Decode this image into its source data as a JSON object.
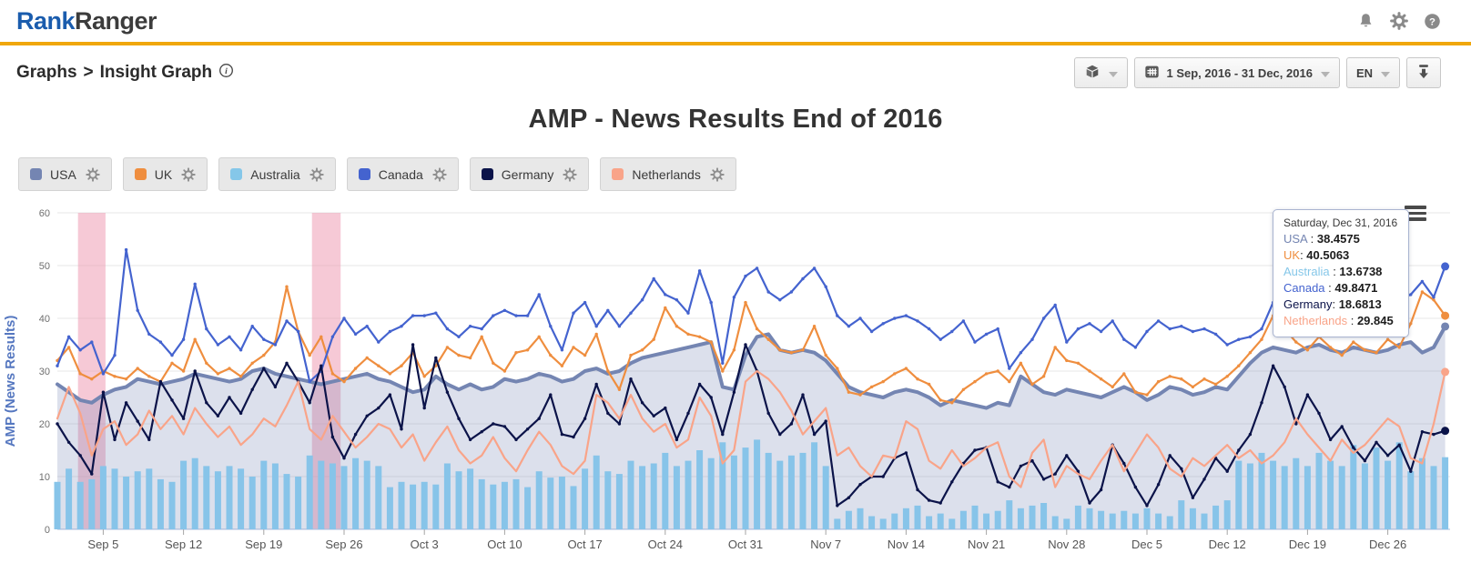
{
  "header": {
    "logo_primary": "Rank",
    "logo_secondary": "Ranger",
    "icons": [
      "notifications-bell",
      "settings-gear",
      "help-question"
    ]
  },
  "breadcrumb": {
    "section": "Graphs",
    "separator": ">",
    "page": "Insight Graph"
  },
  "toolbar": {
    "view_mode_icon": "package-cube",
    "date_range": "1 Sep, 2016 - 31 Dec, 2016",
    "language": "EN",
    "download_icon": "download-arrow"
  },
  "title": "AMP - News Results End of 2016",
  "legend": [
    {
      "label": "USA",
      "color": "#7485B2"
    },
    {
      "label": "UK",
      "color": "#EF8E3F"
    },
    {
      "label": "Australia",
      "color": "#85C7E9"
    },
    {
      "label": "Canada",
      "color": "#4463CF"
    },
    {
      "label": "Germany",
      "color": "#0B1349"
    },
    {
      "label": "Netherlands",
      "color": "#F9A489"
    }
  ],
  "tooltip": {
    "date": "Saturday, Dec 31, 2016",
    "rows": [
      {
        "label": "USA",
        "sep": " : ",
        "value": "38.4575",
        "color": "#7485B2"
      },
      {
        "label": "UK",
        "sep": ": ",
        "value": "40.5063",
        "color": "#EF8E3F"
      },
      {
        "label": "Australia",
        "sep": " : ",
        "value": "13.6738",
        "color": "#85C7E9"
      },
      {
        "label": "Canada",
        "sep": " : ",
        "value": "49.8471",
        "color": "#4463CF"
      },
      {
        "label": "Germany",
        "sep": ": ",
        "value": "18.6813",
        "color": "#0B1349"
      },
      {
        "label": "Netherlands",
        "sep": " : ",
        "value": "29.845",
        "color": "#F9A489"
      }
    ]
  },
  "chart_data": {
    "type": "line",
    "title": "AMP - News Results End of 2016",
    "xlabel": "",
    "ylabel": "AMP (News Results)",
    "ylim": [
      0,
      60
    ],
    "grid": true,
    "legend_position": "top-left",
    "x_start_date": "Sep 1, 2016",
    "x_end_date": "Dec 31, 2016",
    "x_tick_labels": [
      "Sep 5",
      "Sep 12",
      "Sep 19",
      "Sep 26",
      "Oct 3",
      "Oct 10",
      "Oct 17",
      "Oct 24",
      "Oct 31",
      "Nov 7",
      "Nov 14",
      "Nov 21",
      "Nov 28",
      "Dec 5",
      "Dec 12",
      "Dec 19",
      "Dec 26"
    ],
    "x_tick_days": [
      4,
      11,
      18,
      25,
      32,
      39,
      46,
      53,
      60,
      67,
      74,
      81,
      88,
      95,
      102,
      109,
      116
    ],
    "plot_bands": [
      {
        "from_day": 1.8,
        "to_day": 4.2,
        "color": "#EE9DB4"
      },
      {
        "from_day": 22.2,
        "to_day": 24.7,
        "color": "#EE9DB4"
      }
    ],
    "series": [
      {
        "name": "USA",
        "type": "area",
        "color": "#7485B2",
        "fill": "rgba(116,133,178,0.25)",
        "width": 4,
        "values": [
          27.5,
          26,
          24.5,
          24,
          25.5,
          26.5,
          27,
          28.5,
          28,
          27.5,
          28,
          28.5,
          29.5,
          29,
          28.5,
          28,
          28.5,
          30,
          30.5,
          29.5,
          29,
          28.5,
          28,
          27.5,
          28,
          28.5,
          29,
          29.5,
          28.5,
          28,
          27,
          26,
          26.5,
          29,
          27.5,
          26.5,
          27.5,
          26.5,
          27,
          28.5,
          28,
          28.5,
          29.5,
          29,
          28,
          28.5,
          30,
          30.5,
          29.5,
          30,
          31.5,
          32.5,
          33,
          33.5,
          34,
          34.5,
          35,
          35.5,
          27,
          26.5,
          33,
          36.5,
          37,
          34,
          33.5,
          34,
          33.5,
          32,
          29.5,
          27,
          26,
          25.5,
          25,
          26,
          26.5,
          26,
          25,
          23.5,
          24.5,
          24,
          23.5,
          23,
          24,
          23.5,
          29,
          27.5,
          26,
          25.5,
          26.5,
          26,
          25.5,
          25,
          26,
          27,
          26,
          24.5,
          25.5,
          27,
          26.5,
          25.5,
          26,
          27,
          26.5,
          29,
          31.5,
          33.5,
          34.5,
          34,
          33.5,
          34.5,
          35,
          34,
          33.5,
          34.5,
          34,
          33.5,
          34,
          35,
          35.5,
          33.5,
          34.5,
          38.4575
        ]
      },
      {
        "name": "UK",
        "type": "line",
        "color": "#EF8E3F",
        "width": 2.2,
        "markers": true,
        "values": [
          32,
          34.5,
          29.5,
          28.5,
          30,
          29,
          28.5,
          30.5,
          29,
          28,
          31.5,
          30,
          36,
          31.5,
          29.5,
          30.5,
          29,
          31.5,
          33,
          35.5,
          46,
          37.5,
          33,
          36.5,
          29.5,
          28,
          30.5,
          32.5,
          31,
          29.5,
          31,
          33.5,
          29,
          31,
          34.5,
          33,
          32.5,
          36.5,
          31.5,
          30,
          33.5,
          34,
          36.5,
          33,
          31,
          34.5,
          33,
          37,
          30,
          26.5,
          33,
          34,
          36,
          42,
          38.5,
          37,
          36.5,
          35.5,
          30,
          34,
          43,
          38,
          36,
          34,
          33.5,
          34,
          38.5,
          33,
          30.5,
          26,
          25.5,
          27,
          28,
          29.5,
          30.5,
          28.5,
          27.5,
          24.5,
          24,
          26.5,
          28,
          29.5,
          30,
          28,
          31.5,
          27.5,
          29,
          34.5,
          32,
          31.5,
          30,
          28.5,
          27,
          29.5,
          26,
          25.5,
          28,
          29,
          28.5,
          27,
          28.5,
          27.5,
          29,
          31,
          33.5,
          36,
          40.5,
          38,
          35.5,
          34,
          36.5,
          34.5,
          33,
          35.5,
          34,
          33.5,
          36,
          34.5,
          39,
          45,
          43.5,
          40.5063
        ]
      },
      {
        "name": "Australia",
        "type": "column",
        "color": "#87C4E9",
        "values": [
          9,
          11.5,
          9,
          9.5,
          12,
          11.5,
          10,
          11,
          11.5,
          9.5,
          9,
          13,
          13.5,
          12,
          11,
          12,
          11.5,
          10,
          13,
          12.5,
          10.5,
          10,
          14,
          13,
          12.5,
          12,
          13.5,
          13,
          12,
          8,
          9,
          8.5,
          9,
          8.5,
          12.5,
          11,
          11.5,
          9.5,
          8.5,
          9,
          9.5,
          8,
          11,
          9.8,
          10,
          8.2,
          11.5,
          14,
          11,
          10.5,
          13,
          12,
          12.5,
          14.5,
          12,
          13,
          15,
          13.5,
          16.5,
          14,
          15.5,
          17,
          14.5,
          13,
          14,
          14.5,
          16.5,
          12,
          2,
          3.5,
          4,
          2.5,
          2,
          3,
          4,
          4.5,
          2.5,
          3,
          2,
          3.5,
          4.5,
          3,
          3.5,
          5.5,
          4,
          4.5,
          5,
          2.5,
          2,
          4.5,
          4,
          3.5,
          3,
          3.5,
          3,
          4,
          3,
          2.5,
          5.5,
          4,
          3,
          4.5,
          5.5,
          13,
          12.5,
          14.5,
          13,
          12,
          13.5,
          12,
          14.5,
          13,
          12,
          16,
          12.5,
          15.5,
          13,
          16.5,
          11,
          13.5,
          12,
          13.6738
        ]
      },
      {
        "name": "Canada",
        "type": "line",
        "color": "#4463CF",
        "width": 2.2,
        "markers": true,
        "values": [
          31,
          36.5,
          34,
          35.5,
          29.5,
          33,
          53,
          41.5,
          37,
          35.5,
          33,
          36,
          46.5,
          38,
          35,
          36.5,
          34,
          38.5,
          36,
          35,
          39.5,
          37.5,
          28,
          30,
          36.5,
          40,
          37,
          38.5,
          35.5,
          37.5,
          38.5,
          40.5,
          40.5,
          41,
          38,
          36.5,
          38.5,
          38,
          40.5,
          41.5,
          40.5,
          40.5,
          44.5,
          38.5,
          34,
          41,
          43,
          38.5,
          41.5,
          38.5,
          41,
          43.5,
          47.5,
          44.5,
          43.5,
          41,
          49,
          43,
          31.5,
          44,
          48,
          49.5,
          45,
          43.5,
          45,
          47.5,
          49.5,
          46,
          40.5,
          38.5,
          40,
          37.5,
          39,
          40,
          40.5,
          39.5,
          38,
          36,
          37.5,
          39.5,
          35.5,
          37,
          38,
          30.5,
          33.5,
          36,
          40,
          42.5,
          35.5,
          38,
          39,
          37.5,
          39.5,
          36,
          34.5,
          37.5,
          39.5,
          38,
          38.5,
          37.5,
          38,
          37,
          35,
          36,
          36.5,
          38,
          43,
          47.5,
          51.5,
          48.5,
          46,
          48,
          47,
          44.5,
          44,
          45.5,
          44,
          43.5,
          44.5,
          47,
          44,
          49.8471
        ]
      },
      {
        "name": "Germany",
        "type": "line",
        "color": "#0B1349",
        "width": 2.2,
        "markers": true,
        "values": [
          20,
          16.5,
          14,
          10.5,
          26,
          17,
          24,
          20.5,
          17,
          28,
          24.5,
          21,
          30,
          24,
          21.5,
          25,
          22,
          26.5,
          30.5,
          27,
          31.5,
          28,
          24,
          31,
          17.5,
          13.5,
          18,
          21.5,
          23,
          25.5,
          19,
          35,
          23,
          32.5,
          26,
          21,
          17,
          18.5,
          20,
          19.5,
          17,
          19,
          21,
          25.5,
          18,
          17.5,
          21,
          27.5,
          22,
          20,
          28.5,
          24,
          21.5,
          23,
          17,
          22,
          27.5,
          25,
          18,
          26,
          35,
          30,
          22,
          18,
          20,
          25.5,
          18,
          20.5,
          4.5,
          6,
          8.5,
          10,
          10,
          13.5,
          14.5,
          7.5,
          5.5,
          5,
          9,
          12.5,
          15,
          15.5,
          9,
          8,
          12,
          13,
          9.5,
          10.5,
          14,
          11,
          5,
          7.5,
          16,
          12.5,
          8,
          4.5,
          8.5,
          14,
          11.5,
          6,
          9.5,
          13.5,
          11,
          15,
          18,
          24,
          31,
          27,
          20,
          25.5,
          22,
          17,
          19.5,
          15.5,
          13,
          16.5,
          14,
          16,
          11,
          18.5,
          18,
          18.6813
        ]
      },
      {
        "name": "Netherlands",
        "type": "line",
        "color": "#F9A489",
        "width": 2.2,
        "markers": false,
        "values": [
          21,
          27,
          22,
          14,
          19,
          20.5,
          16,
          18,
          22.5,
          19,
          21.5,
          18,
          23,
          20,
          17.5,
          19.5,
          16,
          18,
          21,
          19.5,
          23.5,
          28,
          19,
          17,
          21.5,
          18.5,
          15.5,
          17.5,
          20,
          19,
          15.5,
          18,
          13,
          16.5,
          19.5,
          15,
          12.5,
          14,
          17.5,
          13.5,
          11,
          15,
          18.5,
          16,
          12,
          10.5,
          13,
          25.5,
          24,
          21,
          25.5,
          21,
          18.5,
          20,
          15.5,
          17,
          25,
          21.5,
          12.5,
          15,
          28,
          30,
          28.5,
          26,
          22.5,
          18,
          20.5,
          23,
          14,
          15.5,
          12,
          10,
          14,
          13.5,
          20.5,
          19,
          13,
          11.5,
          15,
          12,
          13.5,
          15.5,
          16.5,
          10,
          8,
          14.5,
          17,
          8,
          12,
          10.5,
          9.5,
          13,
          16,
          11,
          14.5,
          18,
          15.5,
          11.5,
          10,
          13.5,
          12,
          14,
          16,
          13.5,
          15,
          12.5,
          14,
          16.5,
          21,
          18,
          15.5,
          13,
          17,
          14.5,
          16,
          18.5,
          21,
          19.5,
          13.5,
          12.5,
          20,
          29.845
        ]
      }
    ]
  }
}
